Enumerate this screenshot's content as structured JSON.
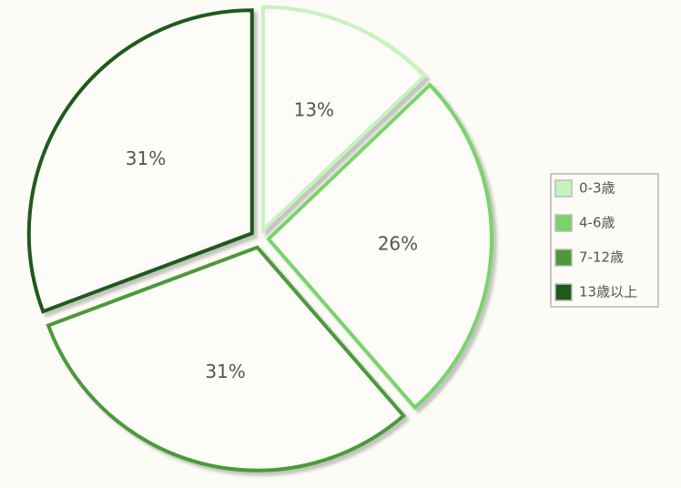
{
  "chart_data": {
    "type": "pie",
    "categories": [
      "0-3歳",
      "4-6歳",
      "7-12歳",
      "13歳以上"
    ],
    "values": [
      13,
      26,
      31,
      31
    ],
    "value_labels": [
      "13%",
      "26%",
      "31%",
      "31%"
    ],
    "colors": [
      "#c6f3bd",
      "#79d46b",
      "#4a9a3a",
      "#1f5a1a"
    ],
    "legend": "right"
  }
}
